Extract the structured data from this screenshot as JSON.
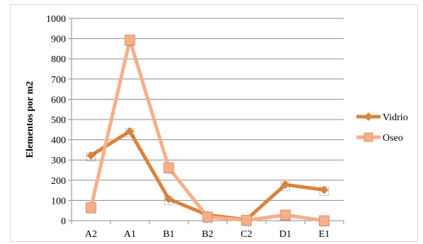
{
  "chart_data": {
    "type": "line",
    "categories": [
      "A2",
      "A1",
      "B1",
      "B2",
      "C2",
      "D1",
      "E1"
    ],
    "series": [
      {
        "name": "Vidrio",
        "values": [
          322,
          442,
          107,
          28,
          5,
          178,
          152
        ],
        "color": "#d9843c",
        "marker": "diamond"
      },
      {
        "name": "Oseo",
        "values": [
          65,
          893,
          262,
          18,
          2,
          28,
          0
        ],
        "color": "#f5b08a",
        "marker": "square"
      }
    ],
    "title": "",
    "xlabel": "",
    "ylabel": "Elementos por m2",
    "ylim": [
      0,
      1000
    ],
    "yticks": [
      0,
      100,
      200,
      300,
      400,
      500,
      600,
      700,
      800,
      900,
      1000
    ],
    "grid": true,
    "legend": "right"
  }
}
